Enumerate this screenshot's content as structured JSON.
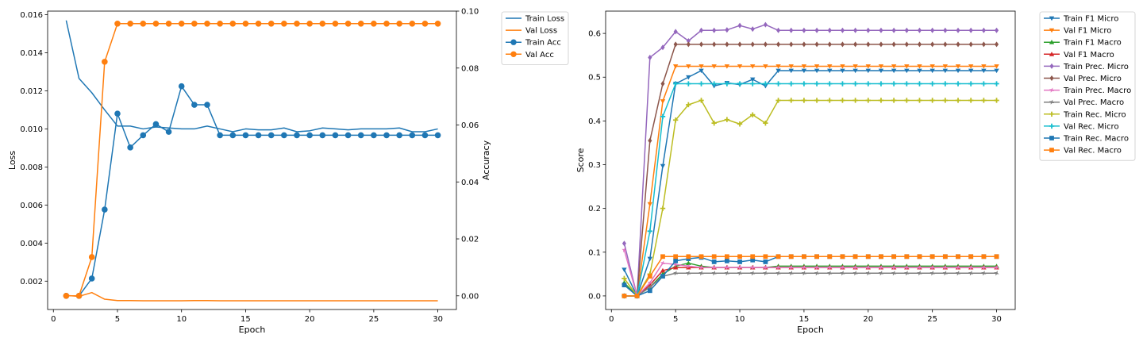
{
  "chart_data": [
    {
      "type": "line",
      "xlabel": "Epoch",
      "ylabel": "Loss",
      "ylabel_right": "Accuracy",
      "xlim": [
        -0.45,
        31.45
      ],
      "ylim": [
        0.00051,
        0.01619
      ],
      "ylim_right": [
        -0.0048,
        0.1
      ],
      "xticks": [
        0,
        5,
        10,
        15,
        20,
        25,
        30
      ],
      "yticks": [
        0.002,
        0.004,
        0.006,
        0.008,
        0.01,
        0.012,
        0.014,
        0.016
      ],
      "yticks_right": [
        0.0,
        0.02,
        0.04,
        0.06,
        0.08,
        0.1
      ],
      "legend_position": "outside-top-right",
      "x": [
        1,
        2,
        3,
        4,
        5,
        6,
        7,
        8,
        9,
        10,
        11,
        12,
        13,
        14,
        15,
        16,
        17,
        18,
        19,
        20,
        21,
        22,
        23,
        24,
        25,
        26,
        27,
        28,
        29,
        30
      ],
      "series": [
        {
          "name": "Train Loss",
          "axis": "left",
          "color": "#1f77b4",
          "marker": "none",
          "values": [
            0.0157,
            0.01265,
            0.0119,
            0.011,
            0.01015,
            0.01015,
            0.01,
            0.0101,
            0.01005,
            0.01,
            0.01,
            0.01015,
            0.01,
            0.00985,
            0.01,
            0.00995,
            0.00995,
            0.01005,
            0.00985,
            0.0099,
            0.01005,
            0.01,
            0.00995,
            0.01,
            0.01,
            0.01,
            0.01005,
            0.00985,
            0.00985,
            0.01
          ]
        },
        {
          "name": "Val Loss",
          "axis": "left",
          "color": "#ff7f0e",
          "marker": "none",
          "values": [
            0.00125,
            0.0012,
            0.0014,
            0.00105,
            0.00098,
            0.00098,
            0.00097,
            0.00097,
            0.00097,
            0.00097,
            0.00098,
            0.00098,
            0.00097,
            0.00097,
            0.00097,
            0.00097,
            0.00097,
            0.00097,
            0.00097,
            0.00097,
            0.00097,
            0.00097,
            0.00097,
            0.00097,
            0.00097,
            0.00097,
            0.00097,
            0.00097,
            0.00097,
            0.00097
          ]
        },
        {
          "name": "Train Acc",
          "axis": "right",
          "color": "#1f77b4",
          "marker": "circle",
          "values": [
            0.0,
            0.0,
            0.0061,
            0.0303,
            0.064,
            0.0521,
            0.0564,
            0.0603,
            0.0576,
            0.0736,
            0.0671,
            0.0671,
            0.0564,
            0.0564,
            0.0564,
            0.0564,
            0.0564,
            0.0564,
            0.0564,
            0.0564,
            0.0564,
            0.0564,
            0.0564,
            0.0564,
            0.0564,
            0.0564,
            0.0564,
            0.0564,
            0.0564,
            0.0564
          ]
        },
        {
          "name": "Val Acc",
          "axis": "right",
          "color": "#ff7f0e",
          "marker": "circle",
          "values": [
            0.0,
            0.0,
            0.0136,
            0.0822,
            0.0956,
            0.0956,
            0.0956,
            0.0956,
            0.0956,
            0.0956,
            0.0956,
            0.0956,
            0.0956,
            0.0956,
            0.0956,
            0.0956,
            0.0956,
            0.0956,
            0.0956,
            0.0956,
            0.0956,
            0.0956,
            0.0956,
            0.0956,
            0.0956,
            0.0956,
            0.0956,
            0.0956,
            0.0956,
            0.0956
          ]
        }
      ]
    },
    {
      "type": "line",
      "xlabel": "Epoch",
      "ylabel": "Score",
      "xlim": [
        -0.45,
        31.45
      ],
      "ylim": [
        -0.031,
        0.651
      ],
      "xticks": [
        0,
        5,
        10,
        15,
        20,
        25,
        30
      ],
      "yticks": [
        0.0,
        0.1,
        0.2,
        0.3,
        0.4,
        0.5,
        0.6
      ],
      "legend_position": "outside-top-right",
      "x": [
        1,
        2,
        3,
        4,
        5,
        6,
        7,
        8,
        9,
        10,
        11,
        12,
        13,
        14,
        15,
        16,
        17,
        18,
        19,
        20,
        21,
        22,
        23,
        24,
        25,
        26,
        27,
        28,
        29,
        30
      ],
      "series": [
        {
          "name": "Train F1 Micro",
          "color": "#1f77b4",
          "marker": "triangle-down",
          "values": [
            0.06,
            0.0,
            0.085,
            0.297,
            0.485,
            0.5,
            0.515,
            0.48,
            0.487,
            0.483,
            0.495,
            0.48,
            0.515,
            0.515,
            0.515,
            0.515,
            0.515,
            0.515,
            0.515,
            0.515,
            0.515,
            0.515,
            0.515,
            0.515,
            0.515,
            0.515,
            0.515,
            0.515,
            0.515,
            0.515
          ]
        },
        {
          "name": "Val F1 Micro",
          "color": "#ff7f0e",
          "marker": "triangle-down",
          "values": [
            0.0,
            0.0,
            0.21,
            0.445,
            0.525,
            0.525,
            0.525,
            0.525,
            0.525,
            0.525,
            0.525,
            0.525,
            0.525,
            0.525,
            0.525,
            0.525,
            0.525,
            0.525,
            0.525,
            0.525,
            0.525,
            0.525,
            0.525,
            0.525,
            0.525,
            0.525,
            0.525,
            0.525,
            0.525,
            0.525
          ]
        },
        {
          "name": "Train F1 Macro",
          "color": "#2ca02c",
          "marker": "triangle-up",
          "values": [
            0.03,
            0.0,
            0.02,
            0.05,
            0.068,
            0.075,
            0.068,
            0.065,
            0.065,
            0.065,
            0.065,
            0.065,
            0.068,
            0.068,
            0.068,
            0.068,
            0.068,
            0.068,
            0.068,
            0.068,
            0.068,
            0.068,
            0.068,
            0.068,
            0.068,
            0.068,
            0.068,
            0.068,
            0.068,
            0.068
          ]
        },
        {
          "name": "Val F1 Macro",
          "color": "#d62728",
          "marker": "triangle-up",
          "values": [
            0.0,
            0.0,
            0.025,
            0.058,
            0.065,
            0.065,
            0.065,
            0.065,
            0.065,
            0.065,
            0.065,
            0.065,
            0.065,
            0.065,
            0.065,
            0.065,
            0.065,
            0.065,
            0.065,
            0.065,
            0.065,
            0.065,
            0.065,
            0.065,
            0.065,
            0.065,
            0.065,
            0.065,
            0.065,
            0.065
          ]
        },
        {
          "name": "Train Prec. Micro",
          "color": "#9467bd",
          "marker": "diamond",
          "values": [
            0.12,
            0.0,
            0.545,
            0.568,
            0.604,
            0.583,
            0.607,
            0.607,
            0.608,
            0.618,
            0.61,
            0.62,
            0.607,
            0.607,
            0.607,
            0.607,
            0.607,
            0.607,
            0.607,
            0.607,
            0.607,
            0.607,
            0.607,
            0.607,
            0.607,
            0.607,
            0.607,
            0.607,
            0.607,
            0.607
          ]
        },
        {
          "name": "Val Prec. Micro",
          "color": "#8c564b",
          "marker": "diamond",
          "values": [
            0.0,
            0.0,
            0.355,
            0.485,
            0.575,
            0.575,
            0.575,
            0.575,
            0.575,
            0.575,
            0.575,
            0.575,
            0.575,
            0.575,
            0.575,
            0.575,
            0.575,
            0.575,
            0.575,
            0.575,
            0.575,
            0.575,
            0.575,
            0.575,
            0.575,
            0.575,
            0.575,
            0.575,
            0.575,
            0.575
          ]
        },
        {
          "name": "Train Prec. Macro",
          "color": "#e377c2",
          "marker": "star",
          "values": [
            0.105,
            0.0,
            0.03,
            0.075,
            0.072,
            0.068,
            0.065,
            0.065,
            0.065,
            0.065,
            0.065,
            0.065,
            0.065,
            0.065,
            0.065,
            0.065,
            0.065,
            0.065,
            0.065,
            0.065,
            0.065,
            0.065,
            0.065,
            0.065,
            0.065,
            0.065,
            0.065,
            0.065,
            0.065,
            0.065
          ]
        },
        {
          "name": "Val Prec. Macro",
          "color": "#7f7f7f",
          "marker": "star",
          "values": [
            0.0,
            0.0,
            0.02,
            0.045,
            0.052,
            0.052,
            0.052,
            0.052,
            0.052,
            0.052,
            0.052,
            0.052,
            0.052,
            0.052,
            0.052,
            0.052,
            0.052,
            0.052,
            0.052,
            0.052,
            0.052,
            0.052,
            0.052,
            0.052,
            0.052,
            0.052,
            0.052,
            0.052,
            0.052,
            0.052
          ]
        },
        {
          "name": "Train Rec. Micro",
          "color": "#bcbd22",
          "marker": "plus",
          "values": [
            0.04,
            0.0,
            0.05,
            0.2,
            0.402,
            0.437,
            0.447,
            0.395,
            0.403,
            0.393,
            0.414,
            0.395,
            0.447,
            0.447,
            0.447,
            0.447,
            0.447,
            0.447,
            0.447,
            0.447,
            0.447,
            0.447,
            0.447,
            0.447,
            0.447,
            0.447,
            0.447,
            0.447,
            0.447,
            0.447
          ]
        },
        {
          "name": "Val Rec. Micro",
          "color": "#17becf",
          "marker": "plus",
          "values": [
            0.0,
            0.0,
            0.148,
            0.41,
            0.485,
            0.485,
            0.485,
            0.485,
            0.485,
            0.485,
            0.485,
            0.485,
            0.485,
            0.485,
            0.485,
            0.485,
            0.485,
            0.485,
            0.485,
            0.485,
            0.485,
            0.485,
            0.485,
            0.485,
            0.485,
            0.485,
            0.485,
            0.485,
            0.485,
            0.485
          ]
        },
        {
          "name": "Train Rec. Macro",
          "color": "#1f77b4",
          "marker": "square",
          "values": [
            0.025,
            0.0,
            0.012,
            0.045,
            0.08,
            0.085,
            0.088,
            0.078,
            0.08,
            0.078,
            0.082,
            0.078,
            0.09,
            0.09,
            0.09,
            0.09,
            0.09,
            0.09,
            0.09,
            0.09,
            0.09,
            0.09,
            0.09,
            0.09,
            0.09,
            0.09,
            0.09,
            0.09,
            0.09,
            0.09
          ]
        },
        {
          "name": "Val Rec. Macro",
          "color": "#ff7f0e",
          "marker": "square",
          "values": [
            0.0,
            0.0,
            0.045,
            0.09,
            0.09,
            0.09,
            0.09,
            0.09,
            0.09,
            0.09,
            0.09,
            0.09,
            0.09,
            0.09,
            0.09,
            0.09,
            0.09,
            0.09,
            0.09,
            0.09,
            0.09,
            0.09,
            0.09,
            0.09,
            0.09,
            0.09,
            0.09,
            0.09,
            0.09,
            0.09
          ]
        }
      ]
    }
  ]
}
